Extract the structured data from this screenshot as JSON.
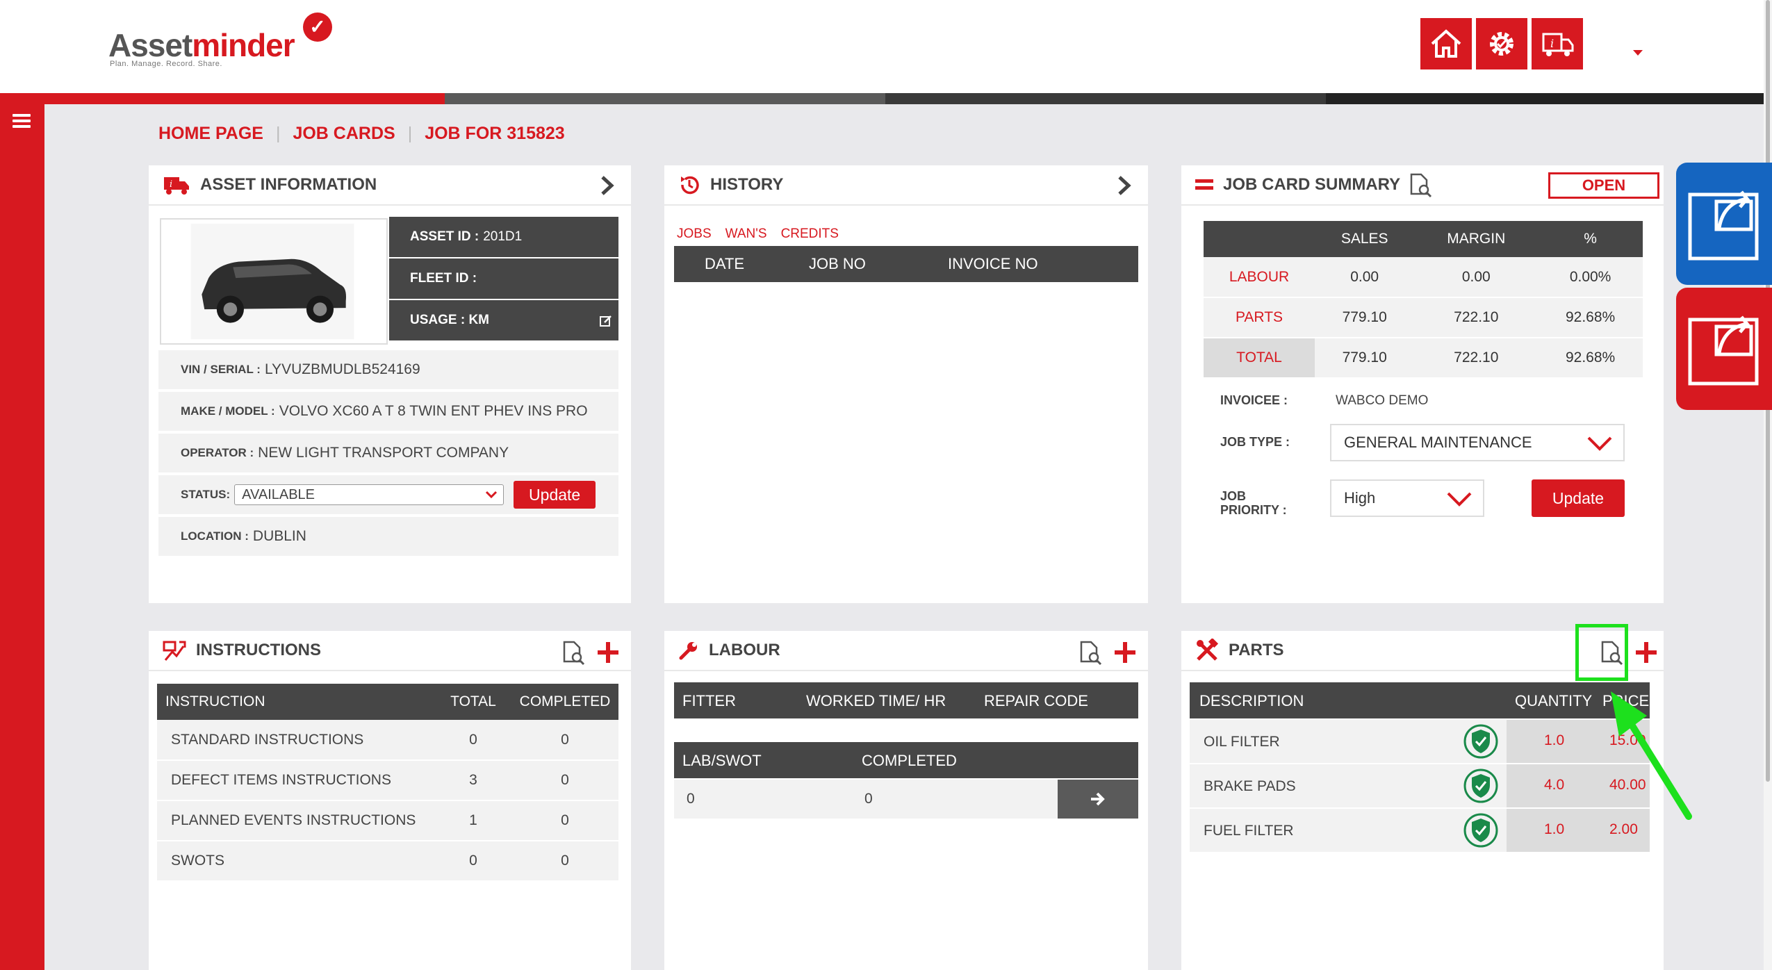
{
  "brand": {
    "name_part1": "Asset",
    "name_part2": "minder",
    "tagline": "Plan. Manage. Record. Share."
  },
  "header_icons": [
    "home-icon",
    "settings-icon",
    "truck-info-icon"
  ],
  "breadcrumb": {
    "home": "HOME PAGE",
    "job_cards": "JOB CARDS",
    "current": "JOB FOR 315823"
  },
  "asset_info": {
    "title": "ASSET INFORMATION",
    "asset_id_label": "ASSET ID :",
    "asset_id": "201D1",
    "fleet_id_label": "FLEET ID :",
    "usage_label": "USAGE : KM",
    "vin_label": "VIN / SERIAL :",
    "vin": "LYVUZBMUDLB524169",
    "make_label": "MAKE / MODEL :",
    "make": "VOLVO XC60 A T 8 TWIN ENT PHEV INS PRO",
    "operator_label": "OPERATOR :",
    "operator": "NEW LIGHT TRANSPORT COMPANY",
    "status_label": "STATUS:",
    "status": "AVAILABLE",
    "update_btn": "Update",
    "location_label": "LOCATION :",
    "location": "DUBLIN"
  },
  "history": {
    "title": "HISTORY",
    "tabs": [
      "JOBS",
      "WAN'S",
      "CREDITS"
    ],
    "columns": [
      "DATE",
      "JOB NO",
      "INVOICE NO"
    ]
  },
  "summary": {
    "title": "JOB CARD SUMMARY",
    "status": "OPEN",
    "columns": [
      "SALES",
      "MARGIN",
      "%"
    ],
    "rows": [
      {
        "label": "LABOUR",
        "sales": "0.00",
        "margin": "0.00",
        "pct": "0.00%"
      },
      {
        "label": "PARTS",
        "sales": "779.10",
        "margin": "722.10",
        "pct": "92.68%"
      },
      {
        "label": "TOTAL",
        "sales": "779.10",
        "margin": "722.10",
        "pct": "92.68%"
      }
    ],
    "invoicee_label": "INVOICEE :",
    "invoicee": "WABCO DEMO",
    "job_type_label": "JOB TYPE :",
    "job_type": "GENERAL MAINTENANCE",
    "priority_label_1": "JOB",
    "priority_label_2": "PRIORITY :",
    "priority": "High",
    "update_btn": "Update"
  },
  "instructions": {
    "title": "INSTRUCTIONS",
    "columns": [
      "INSTRUCTION",
      "TOTAL",
      "COMPLETED"
    ],
    "rows": [
      {
        "name": "STANDARD INSTRUCTIONS",
        "total": "0",
        "completed": "0"
      },
      {
        "name": "DEFECT ITEMS INSTRUCTIONS",
        "total": "3",
        "completed": "0"
      },
      {
        "name": "PLANNED EVENTS INSTRUCTIONS",
        "total": "1",
        "completed": "0"
      },
      {
        "name": "SWOTS",
        "total": "0",
        "completed": "0"
      }
    ]
  },
  "labour": {
    "title": "LABOUR",
    "columns": [
      "FITTER",
      "WORKED TIME/ HR",
      "REPAIR CODE"
    ],
    "sub_columns": [
      "LAB/SWOT",
      "COMPLETED"
    ],
    "sub_row": {
      "lab": "0",
      "completed": "0"
    }
  },
  "parts": {
    "title": "PARTS",
    "columns": [
      "DESCRIPTION",
      "QUANTITY",
      "PRICE"
    ],
    "rows": [
      {
        "desc": "OIL FILTER",
        "qty": "1.0",
        "price": "15.00"
      },
      {
        "desc": "BRAKE PADS",
        "qty": "4.0",
        "price": "40.00"
      },
      {
        "desc": "FUEL FILTER",
        "qty": "1.0",
        "price": "2.00"
      }
    ]
  },
  "colors": {
    "accent": "#d71920",
    "dark": "#464646",
    "highlight": "#1de01d",
    "blue": "#1565c0"
  }
}
